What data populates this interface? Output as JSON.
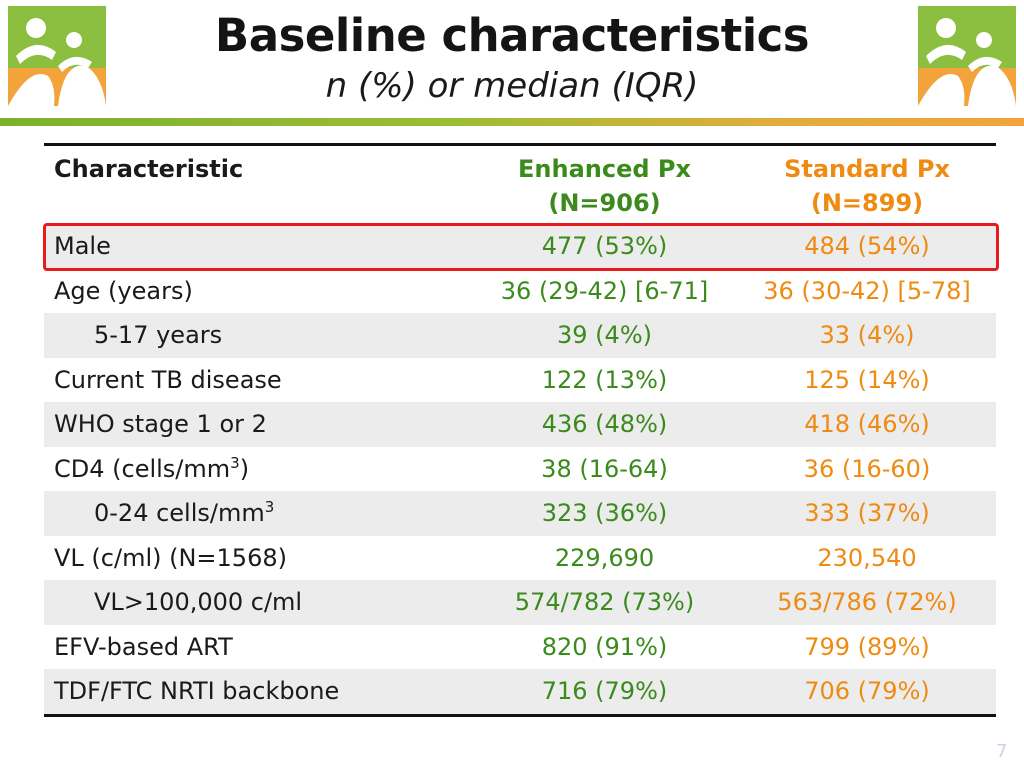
{
  "slide": {
    "title": "Baseline characteristics",
    "subtitle": "n (%) or median (IQR)",
    "page_number": "7"
  },
  "table": {
    "headers": {
      "characteristic": "Characteristic",
      "enhanced_line1": "Enhanced Px",
      "enhanced_line2": "(N=906)",
      "standard_line1": "Standard Px",
      "standard_line2": "(N=899)"
    },
    "rows": [
      {
        "label": "Male",
        "enhanced": "477 (53%)",
        "standard": "484 (54%)"
      },
      {
        "label": "Age (years)",
        "enhanced": "36 (29-42) [6-71]",
        "standard": "36 (30-42) [5-78]"
      },
      {
        "label": "5-17 years",
        "enhanced": "39 (4%)",
        "standard": "33 (4%)"
      },
      {
        "label": "Current TB disease",
        "enhanced": "122 (13%)",
        "standard": "125 (14%)"
      },
      {
        "label": "WHO stage 1 or 2",
        "enhanced": "436 (48%)",
        "standard": "418 (46%)"
      },
      {
        "label": "CD4 (cells/mm",
        "label_sup": "3",
        "label_after": ")",
        "enhanced": "38 (16-64)",
        "standard": "36 (16-60)"
      },
      {
        "label": "0-24 cells/mm",
        "label_sup": "3",
        "enhanced": "323 (36%)",
        "standard": "333 (37%)"
      },
      {
        "label": "VL (c/ml) (N=1568)",
        "enhanced": "229,690",
        "standard": "230,540"
      },
      {
        "label": "VL>100,000 c/ml",
        "enhanced": "574/782 (73%)",
        "standard": "563/786 (72%)"
      },
      {
        "label": "EFV-based ART",
        "enhanced": "820 (91%)",
        "standard": "799 (89%)"
      },
      {
        "label": "TDF/FTC NRTI backbone",
        "enhanced": "716 (79%)",
        "standard": "706 (79%)"
      }
    ]
  },
  "colors": {
    "enhanced": "#3a8a1c",
    "standard": "#ef8a12",
    "highlight_border": "#e81c1c"
  },
  "icons": {
    "logo_left": "family-logo-icon",
    "logo_right": "family-logo-icon"
  }
}
